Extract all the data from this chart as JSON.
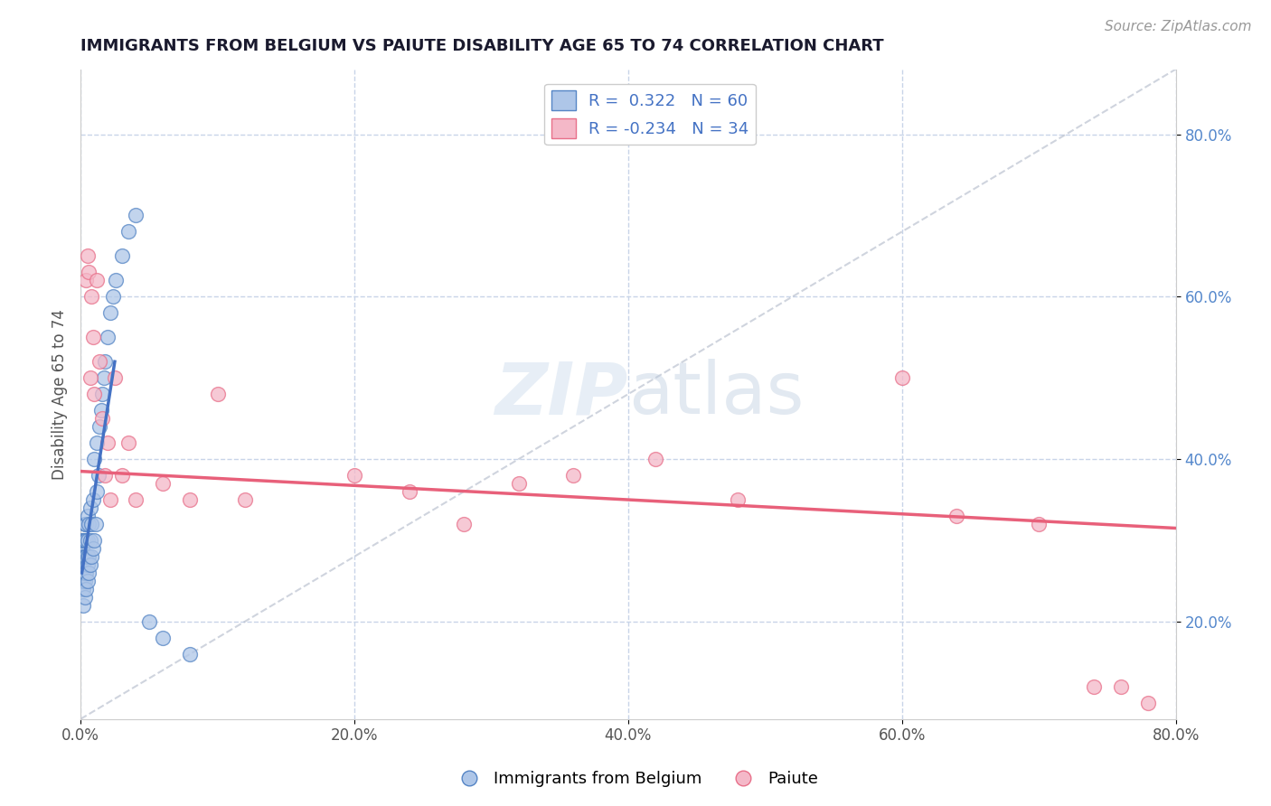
{
  "title": "IMMIGRANTS FROM BELGIUM VS PAIUTE DISABILITY AGE 65 TO 74 CORRELATION CHART",
  "source": "Source: ZipAtlas.com",
  "ylabel": "Disability Age 65 to 74",
  "xlim": [
    0.0,
    0.8
  ],
  "ylim": [
    0.08,
    0.88
  ],
  "xticks": [
    0.0,
    0.2,
    0.4,
    0.6,
    0.8
  ],
  "xticklabels": [
    "0.0%",
    "20.0%",
    "40.0%",
    "60.0%",
    "80.0%"
  ],
  "right_yticks": [
    0.2,
    0.4,
    0.6,
    0.8
  ],
  "right_yticklabels": [
    "20.0%",
    "40.0%",
    "60.0%",
    "80.0%"
  ],
  "legend_r1": "R =  0.322",
  "legend_n1": "N = 60",
  "legend_r2": "R = -0.234",
  "legend_n2": "N = 34",
  "color_blue_fill": "#aec6e8",
  "color_pink_fill": "#f4b8c8",
  "color_blue_edge": "#5585c5",
  "color_pink_edge": "#e8708a",
  "color_blue_line": "#4472c4",
  "color_pink_line": "#e8607a",
  "color_diag": "#b0b8c8",
  "background": "#ffffff",
  "grid_color": "#c8d4e8",
  "title_color": "#1a1a2e",
  "watermark_color": "#d8e4f0",
  "belgium_x": [
    0.001,
    0.001,
    0.001,
    0.001,
    0.001,
    0.001,
    0.002,
    0.002,
    0.002,
    0.002,
    0.002,
    0.002,
    0.002,
    0.003,
    0.003,
    0.003,
    0.003,
    0.003,
    0.003,
    0.004,
    0.004,
    0.004,
    0.004,
    0.004,
    0.005,
    0.005,
    0.005,
    0.005,
    0.005,
    0.006,
    0.006,
    0.006,
    0.007,
    0.007,
    0.007,
    0.008,
    0.008,
    0.009,
    0.009,
    0.01,
    0.01,
    0.011,
    0.012,
    0.012,
    0.013,
    0.014,
    0.015,
    0.016,
    0.017,
    0.018,
    0.02,
    0.022,
    0.024,
    0.026,
    0.03,
    0.035,
    0.04,
    0.05,
    0.06,
    0.08
  ],
  "belgium_y": [
    0.24,
    0.26,
    0.27,
    0.28,
    0.29,
    0.3,
    0.22,
    0.24,
    0.25,
    0.26,
    0.27,
    0.28,
    0.3,
    0.23,
    0.25,
    0.26,
    0.28,
    0.3,
    0.32,
    0.24,
    0.26,
    0.28,
    0.3,
    0.32,
    0.25,
    0.27,
    0.28,
    0.3,
    0.33,
    0.26,
    0.28,
    0.32,
    0.27,
    0.3,
    0.34,
    0.28,
    0.32,
    0.29,
    0.35,
    0.3,
    0.4,
    0.32,
    0.36,
    0.42,
    0.38,
    0.44,
    0.46,
    0.48,
    0.5,
    0.52,
    0.55,
    0.58,
    0.6,
    0.62,
    0.65,
    0.68,
    0.7,
    0.2,
    0.18,
    0.16
  ],
  "belgium_trend_x": [
    0.001,
    0.025
  ],
  "belgium_trend_y_start": 0.26,
  "belgium_trend_y_end": 0.52,
  "paiute_x": [
    0.004,
    0.005,
    0.006,
    0.007,
    0.008,
    0.009,
    0.01,
    0.012,
    0.014,
    0.016,
    0.018,
    0.02,
    0.022,
    0.025,
    0.03,
    0.035,
    0.04,
    0.06,
    0.08,
    0.1,
    0.12,
    0.2,
    0.24,
    0.28,
    0.32,
    0.36,
    0.42,
    0.48,
    0.6,
    0.64,
    0.7,
    0.74,
    0.76,
    0.78
  ],
  "paiute_y": [
    0.62,
    0.65,
    0.63,
    0.5,
    0.6,
    0.55,
    0.48,
    0.62,
    0.52,
    0.45,
    0.38,
    0.42,
    0.35,
    0.5,
    0.38,
    0.42,
    0.35,
    0.37,
    0.35,
    0.48,
    0.35,
    0.38,
    0.36,
    0.32,
    0.37,
    0.38,
    0.4,
    0.35,
    0.5,
    0.33,
    0.32,
    0.12,
    0.12,
    0.1
  ],
  "paiute_trend_x": [
    0.0,
    0.8
  ],
  "paiute_trend_y_start": 0.385,
  "paiute_trend_y_end": 0.315
}
